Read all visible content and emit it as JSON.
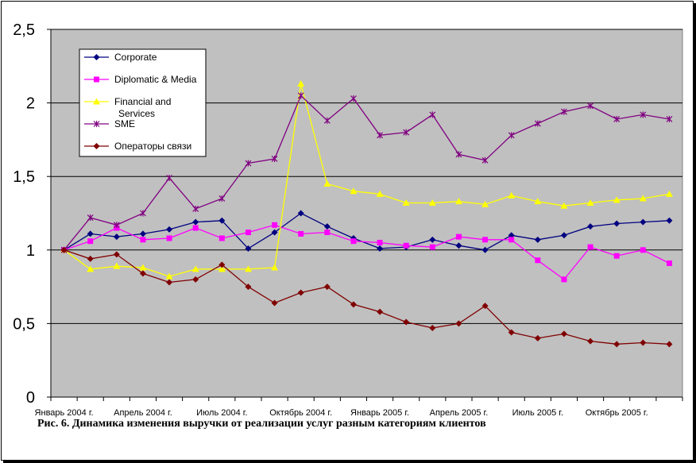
{
  "chart_data": {
    "type": "line",
    "title": "",
    "xlabel": "",
    "ylabel": "",
    "ylim": [
      0,
      2.5
    ],
    "grid": true,
    "legend_position": "top-left",
    "y_ticks": [
      "0",
      "0,5",
      "1",
      "1,5",
      "2",
      "2,5"
    ],
    "x": [
      "2004-01",
      "2004-02",
      "2004-03",
      "2004-04",
      "2004-05",
      "2004-06",
      "2004-07",
      "2004-08",
      "2004-09",
      "2004-10",
      "2004-11",
      "2004-12",
      "2005-01",
      "2005-02",
      "2005-03",
      "2005-04",
      "2005-05",
      "2005-06",
      "2005-07",
      "2005-08",
      "2005-09",
      "2005-10",
      "2005-11",
      "2005-12"
    ],
    "x_tick_labels": [
      {
        "index": 0,
        "label": "Январь 2004 г."
      },
      {
        "index": 3,
        "label": "Апрель 2004 г."
      },
      {
        "index": 6,
        "label": "Июль 2004 г."
      },
      {
        "index": 9,
        "label": "Октябрь 2004 г."
      },
      {
        "index": 12,
        "label": "Январь 2005 г."
      },
      {
        "index": 15,
        "label": "Апрель 2005 г."
      },
      {
        "index": 18,
        "label": "Июль 2005 г."
      },
      {
        "index": 21,
        "label": "Октябрь 2005 г."
      }
    ],
    "series": [
      {
        "name": "Corporate",
        "color": "#000080",
        "marker": "diamond",
        "values": [
          1.0,
          1.11,
          1.09,
          1.11,
          1.14,
          1.19,
          1.2,
          1.01,
          1.12,
          1.25,
          1.16,
          1.08,
          1.01,
          1.02,
          1.07,
          1.03,
          1.0,
          1.1,
          1.07,
          1.1,
          1.16,
          1.18,
          1.19,
          1.2
        ]
      },
      {
        "name": "Diplomatic & Media",
        "color": "#ff00ff",
        "marker": "square",
        "values": [
          1.0,
          1.06,
          1.15,
          1.07,
          1.08,
          1.15,
          1.08,
          1.12,
          1.17,
          1.11,
          1.12,
          1.06,
          1.05,
          1.03,
          1.02,
          1.09,
          1.07,
          1.07,
          0.93,
          0.8,
          1.02,
          0.96,
          1.0,
          0.91
        ]
      },
      {
        "name": "Financial and Services",
        "color": "#ffff00",
        "marker": "triangle",
        "values": [
          1.0,
          0.87,
          0.89,
          0.88,
          0.82,
          0.87,
          0.87,
          0.87,
          0.88,
          2.13,
          1.45,
          1.4,
          1.38,
          1.32,
          1.32,
          1.33,
          1.31,
          1.37,
          1.33,
          1.3,
          1.32,
          1.34,
          1.35,
          1.38
        ]
      },
      {
        "name": "SME",
        "color": "#800080",
        "marker": "star",
        "values": [
          1.0,
          1.22,
          1.17,
          1.25,
          1.49,
          1.28,
          1.35,
          1.59,
          1.62,
          2.05,
          1.88,
          2.03,
          1.78,
          1.8,
          1.92,
          1.65,
          1.61,
          1.78,
          1.86,
          1.94,
          1.98,
          1.89,
          1.92,
          1.89
        ]
      },
      {
        "name": "Операторы связи",
        "color": "#800000",
        "marker": "diamond",
        "values": [
          1.0,
          0.94,
          0.97,
          0.84,
          0.78,
          0.8,
          0.9,
          0.75,
          0.64,
          0.71,
          0.75,
          0.63,
          0.58,
          0.51,
          0.47,
          0.5,
          0.62,
          0.44,
          0.4,
          0.43,
          0.38,
          0.36,
          0.37,
          0.36
        ]
      }
    ]
  },
  "legend": {
    "items": [
      "Corporate",
      "Diplomatic & Media",
      "Financial and\nServices",
      "SME",
      "Операторы связи"
    ]
  },
  "caption": "Рис. 6. Динамика изменения выручки от реализации услуг разным категориям клиентов"
}
